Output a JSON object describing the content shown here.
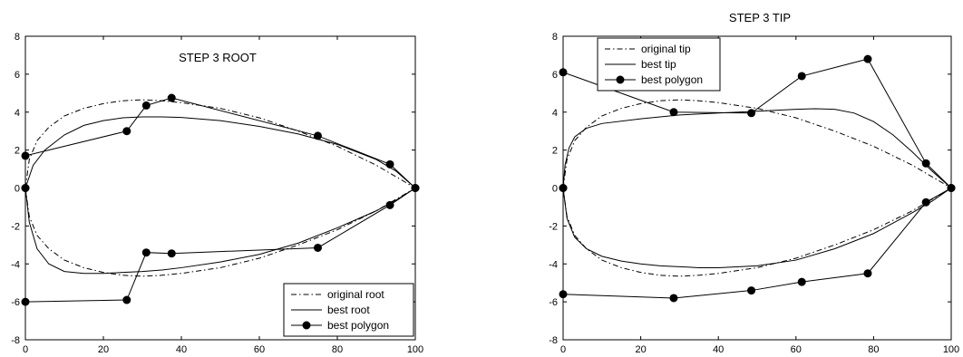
{
  "chart_data": [
    {
      "type": "line",
      "title": "STEP 3 ROOT",
      "xlim": [
        0,
        100
      ],
      "ylim": [
        -8,
        8
      ],
      "xticks": [
        "0",
        "20",
        "40",
        "60",
        "80",
        "100"
      ],
      "yticks": [
        "-8",
        "-6",
        "-4",
        "-2",
        "0",
        "2",
        "4",
        "6",
        "8"
      ],
      "legend_position": "bottom-right",
      "series": [
        {
          "name": "original root",
          "style": "dash-dot",
          "x": [
            0,
            1,
            3,
            6,
            10,
            15,
            20,
            25,
            30,
            35,
            40,
            50,
            60,
            70,
            80,
            90,
            95,
            100
          ],
          "y": [
            0,
            1.5,
            2.5,
            3.2,
            3.8,
            4.2,
            4.45,
            4.6,
            4.65,
            4.6,
            4.5,
            4.2,
            3.7,
            3.0,
            2.2,
            1.2,
            0.6,
            0
          ]
        },
        {
          "name": "original root",
          "style": "dash-dot",
          "x": [
            0,
            1,
            3,
            6,
            10,
            15,
            20,
            25,
            30,
            35,
            40,
            50,
            60,
            70,
            80,
            90,
            95,
            100
          ],
          "y": [
            0,
            -1.5,
            -2.5,
            -3.2,
            -3.8,
            -4.2,
            -4.45,
            -4.6,
            -4.65,
            -4.6,
            -4.5,
            -4.2,
            -3.7,
            -3.0,
            -2.2,
            -1.2,
            -0.6,
            0
          ]
        },
        {
          "name": "best root",
          "style": "solid",
          "x": [
            0,
            2,
            5,
            10,
            15,
            20,
            25,
            30,
            35,
            40,
            50,
            60,
            70,
            80,
            90,
            95,
            100
          ],
          "y": [
            0,
            1.2,
            2.0,
            2.8,
            3.3,
            3.55,
            3.7,
            3.75,
            3.75,
            3.72,
            3.55,
            3.25,
            2.85,
            2.3,
            1.5,
            0.9,
            0
          ]
        },
        {
          "name": "best root",
          "style": "solid",
          "x": [
            0,
            1,
            3,
            6,
            10,
            15,
            20,
            25,
            30,
            35,
            40,
            50,
            60,
            70,
            80,
            90,
            95,
            100
          ],
          "y": [
            0,
            -1.8,
            -3.2,
            -4.0,
            -4.4,
            -4.5,
            -4.5,
            -4.45,
            -4.4,
            -4.32,
            -4.2,
            -3.9,
            -3.5,
            -2.9,
            -2.1,
            -1.2,
            -0.65,
            0
          ]
        },
        {
          "name": "best polygon",
          "style": "solid-dots",
          "x": [
            0,
            0,
            26,
            31,
            37.5,
            75,
            93.5,
            100
          ],
          "y": [
            0,
            1.7,
            3.0,
            4.35,
            4.75,
            2.75,
            1.25,
            0
          ]
        },
        {
          "name": "best polygon",
          "style": "solid-dots",
          "x": [
            0,
            0,
            26,
            31,
            37.5,
            75,
            93.5,
            100
          ],
          "y": [
            0,
            -6.0,
            -5.9,
            -3.4,
            -3.45,
            -3.15,
            -0.9,
            0
          ]
        }
      ]
    },
    {
      "type": "line",
      "title": "STEP 3 TIP",
      "xlim": [
        0,
        100
      ],
      "ylim": [
        -8,
        8
      ],
      "xticks": [
        "0",
        "20",
        "40",
        "60",
        "80",
        "100"
      ],
      "yticks": [
        "-8",
        "-6",
        "-4",
        "-2",
        "0",
        "2",
        "4",
        "6",
        "8"
      ],
      "legend_position": "top-left",
      "series": [
        {
          "name": "original tip",
          "style": "dash-dot",
          "x": [
            0,
            1,
            3,
            6,
            10,
            15,
            20,
            25,
            30,
            35,
            40,
            50,
            60,
            70,
            80,
            90,
            95,
            100
          ],
          "y": [
            0,
            1.5,
            2.5,
            3.2,
            3.8,
            4.2,
            4.45,
            4.6,
            4.65,
            4.6,
            4.5,
            4.2,
            3.7,
            3.0,
            2.2,
            1.2,
            0.6,
            0
          ]
        },
        {
          "name": "original tip",
          "style": "dash-dot",
          "x": [
            0,
            1,
            3,
            6,
            10,
            15,
            20,
            25,
            30,
            35,
            40,
            50,
            60,
            70,
            80,
            90,
            95,
            100
          ],
          "y": [
            0,
            -1.5,
            -2.5,
            -3.2,
            -3.8,
            -4.2,
            -4.45,
            -4.6,
            -4.65,
            -4.6,
            -4.5,
            -4.2,
            -3.7,
            -3.0,
            -2.2,
            -1.2,
            -0.6,
            0
          ]
        },
        {
          "name": "best tip",
          "style": "solid",
          "x": [
            0,
            0.5,
            1.5,
            3,
            6,
            10,
            20,
            30,
            40,
            50,
            60,
            65,
            70,
            75,
            80,
            85,
            90,
            95,
            100
          ],
          "y": [
            0,
            1.2,
            2.1,
            2.7,
            3.15,
            3.4,
            3.65,
            3.85,
            3.95,
            4.05,
            4.15,
            4.18,
            4.15,
            3.95,
            3.5,
            2.8,
            1.9,
            0.9,
            0
          ]
        },
        {
          "name": "best tip",
          "style": "solid",
          "x": [
            0,
            1,
            3,
            6,
            10,
            15,
            20,
            25,
            30,
            35,
            40,
            50,
            60,
            70,
            80,
            90,
            95,
            100
          ],
          "y": [
            0,
            -1.6,
            -2.6,
            -3.2,
            -3.6,
            -3.85,
            -4.0,
            -4.1,
            -4.15,
            -4.2,
            -4.2,
            -4.1,
            -3.8,
            -3.2,
            -2.4,
            -1.3,
            -0.7,
            0
          ]
        },
        {
          "name": "best polygon",
          "style": "solid-dots",
          "x": [
            0,
            0,
            28.5,
            48.5,
            61.5,
            78.5,
            93.5,
            100
          ],
          "y": [
            0,
            6.1,
            4.0,
            3.95,
            5.9,
            6.8,
            1.3,
            0
          ]
        },
        {
          "name": "best polygon",
          "style": "solid-dots",
          "x": [
            0,
            0,
            28.5,
            48.5,
            61.5,
            78.5,
            93.5,
            100
          ],
          "y": [
            0,
            -5.6,
            -5.8,
            -5.4,
            -4.95,
            -4.5,
            -0.75,
            0
          ]
        }
      ]
    }
  ]
}
